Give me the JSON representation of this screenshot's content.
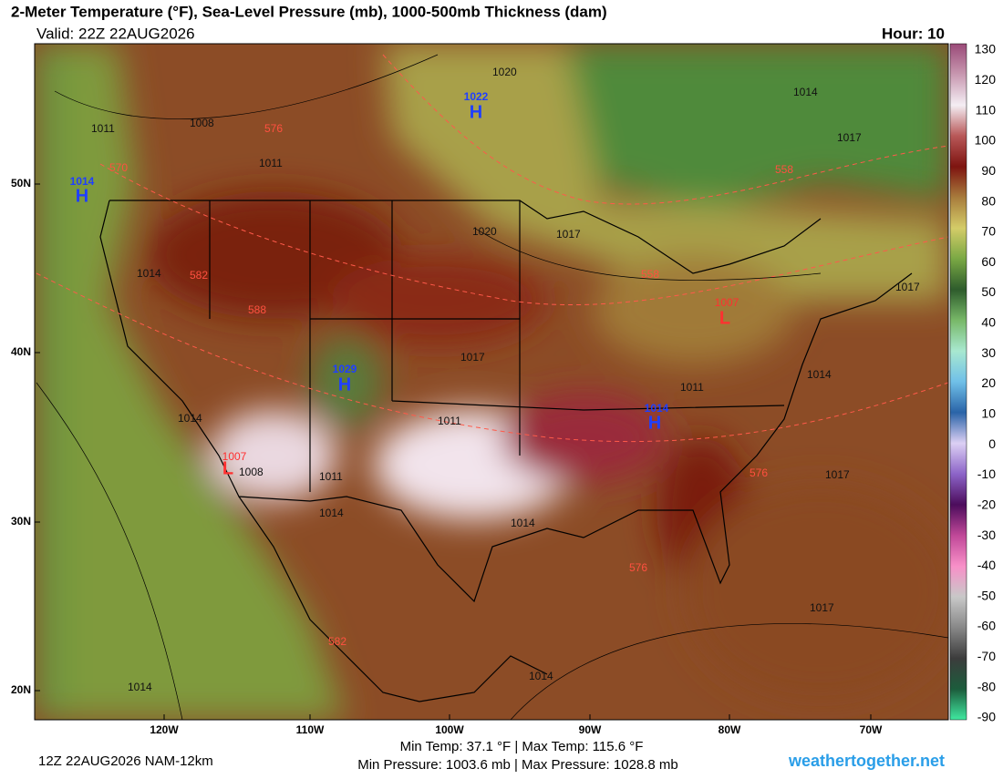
{
  "header": {
    "title": "2-Meter Temperature (°F), Sea-Level Pressure (mb), 1000-500mb Thickness (dam)",
    "valid": "Valid: 22Z 22AUG2026",
    "hour": "Hour: 10"
  },
  "map": {
    "pressure": [
      "1011",
      "1008",
      "1011",
      "1020",
      "1020",
      "1017",
      "1014",
      "1017",
      "1017",
      "1014",
      "1011",
      "1017",
      "1011",
      "1008",
      "1011",
      "1014",
      "1014",
      "1017",
      "1017",
      "1014",
      "1014",
      "1014",
      "1014"
    ],
    "thickness": [
      "576",
      "570",
      "582",
      "588",
      "558",
      "558",
      "576",
      "576",
      "582"
    ],
    "highs": [
      {
        "pressure": "1022",
        "letter": "H"
      },
      {
        "pressure": "1014",
        "letter": "H"
      },
      {
        "pressure": "1029",
        "letter": "H"
      },
      {
        "pressure": "1014",
        "letter": "H"
      }
    ],
    "lows": [
      {
        "pressure": "1007",
        "letter": "L"
      },
      {
        "pressure": "1007",
        "letter": "L"
      }
    ],
    "lat_labels": [
      "50N",
      "40N",
      "30N",
      "20N"
    ],
    "lon_labels": [
      "120W",
      "110W",
      "100W",
      "90W",
      "80W",
      "70W"
    ]
  },
  "colorbar": {
    "labels": [
      "130",
      "120",
      "110",
      "100",
      "90",
      "80",
      "70",
      "60",
      "50",
      "40",
      "30",
      "20",
      "10",
      "0",
      "-10",
      "-20",
      "-30",
      "-40",
      "-50",
      "-60",
      "-70",
      "-80",
      "-90"
    ],
    "colors": [
      "#9a4a78",
      "#c898b0",
      "#f4eef4",
      "#b85858",
      "#7e1410",
      "#a87c3c",
      "#d4cc68",
      "#7aa844",
      "#2e5c2c",
      "#78b868",
      "#a8e8d0",
      "#70c0e8",
      "#2a64a8",
      "#dcd0f4",
      "#8c64c8",
      "#4c0c5c",
      "#c04898",
      "#f890c8",
      "#c8c8c8",
      "#888888",
      "#3c3c3c",
      "#1c5c3c",
      "#40e8a0"
    ]
  },
  "footer": {
    "run": "12Z 22AUG2026 NAM-12km",
    "temp": "Min Temp:  37.1 °F | Max Temp: 115.6 °F",
    "pressure": "Min Pressure: 1003.6 mb | Max Pressure: 1028.8 mb",
    "site": "weathertogether.net"
  }
}
